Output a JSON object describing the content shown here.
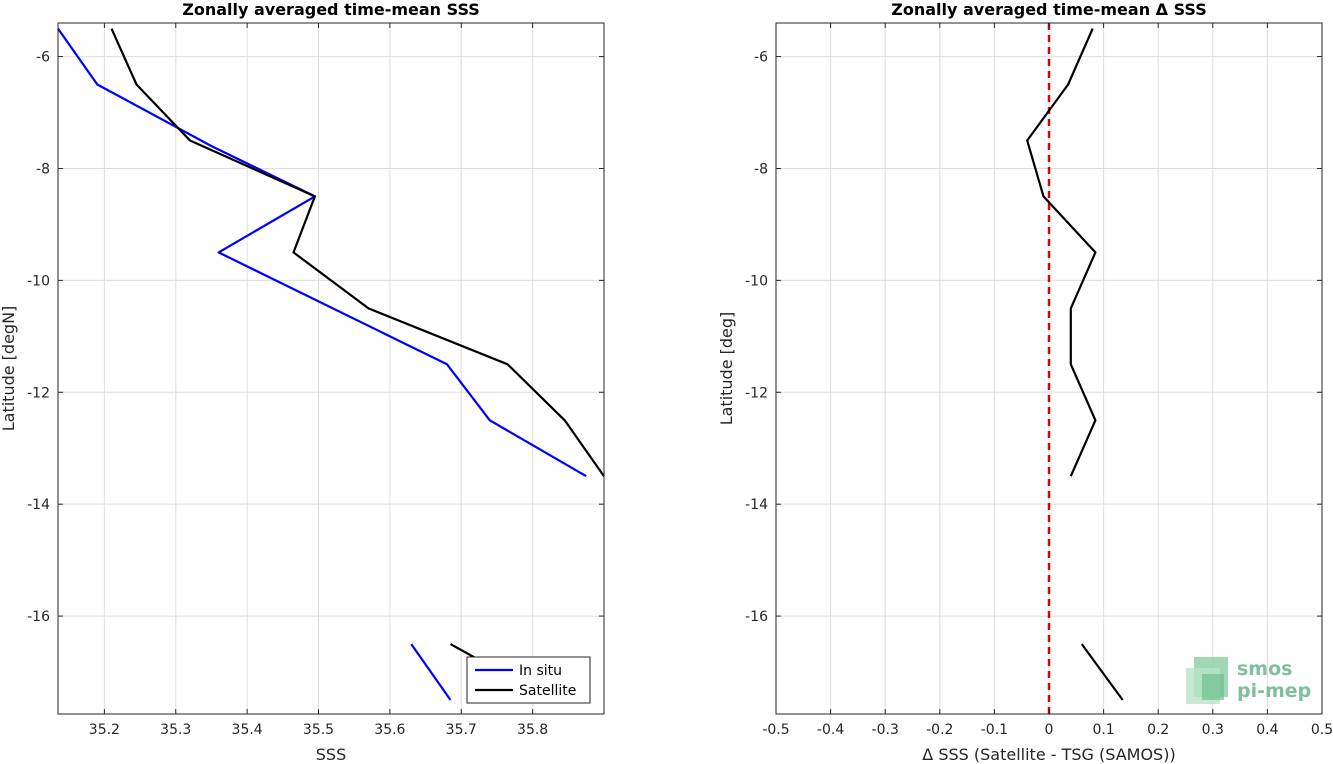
{
  "chart_data": [
    {
      "type": "line",
      "title": "Zonally averaged time-mean SSS",
      "xlabel": "SSS",
      "ylabel": "Latitude [degN]",
      "xlim": [
        35.135,
        35.9
      ],
      "ylim": [
        -17.75,
        -5.4
      ],
      "xticks": [
        35.2,
        35.3,
        35.4,
        35.5,
        35.6,
        35.7,
        35.8
      ],
      "yticks": [
        -6,
        -8,
        -10,
        -12,
        -14,
        -16
      ],
      "grid": true,
      "legend": "bottom-right",
      "series": [
        {
          "name": "In situ",
          "color": "#0000ff",
          "segments": [
            [
              [
                35.135,
                -5.5
              ],
              [
                35.19,
                -6.5
              ],
              [
                35.35,
                -7.6
              ],
              [
                35.495,
                -8.5
              ],
              [
                35.36,
                -9.5
              ],
              [
                35.68,
                -11.5
              ],
              [
                35.74,
                -12.5
              ],
              [
                35.875,
                -13.5
              ]
            ],
            [
              [
                35.63,
                -16.5
              ],
              [
                35.685,
                -17.5
              ]
            ]
          ]
        },
        {
          "name": "Satellite",
          "color": "#000000",
          "segments": [
            [
              [
                35.21,
                -5.5
              ],
              [
                35.245,
                -6.5
              ],
              [
                35.32,
                -7.5
              ],
              [
                35.495,
                -8.5
              ],
              [
                35.465,
                -9.5
              ],
              [
                35.57,
                -10.5
              ],
              [
                35.765,
                -11.5
              ],
              [
                35.845,
                -12.5
              ],
              [
                35.9,
                -13.5
              ]
            ],
            [
              [
                35.685,
                -16.5
              ],
              [
                35.72,
                -16.75
              ]
            ]
          ]
        }
      ]
    },
    {
      "type": "line",
      "title": "Zonally averaged time-mean Δ SSS",
      "xlabel": "Δ SSS (Satellite - TSG (SAMOS))",
      "ylabel": "Latitude [deg]",
      "xlim": [
        -0.5,
        0.5
      ],
      "ylim": [
        -17.75,
        -5.4
      ],
      "xticks": [
        -0.5,
        -0.4,
        -0.3,
        -0.2,
        -0.1,
        0,
        0.1,
        0.2,
        0.3,
        0.4,
        0.5
      ],
      "yticks": [
        -6,
        -8,
        -10,
        -12,
        -14,
        -16
      ],
      "grid": true,
      "reference_line": {
        "x": 0,
        "color": "#e00000",
        "style": "dashed"
      },
      "series": [
        {
          "color": "#000000",
          "segments": [
            [
              [
                0.08,
                -5.5
              ],
              [
                0.035,
                -6.5
              ],
              [
                -0.04,
                -7.5
              ],
              [
                -0.01,
                -8.5
              ],
              [
                0.085,
                -9.5
              ],
              [
                0.04,
                -10.5
              ],
              [
                0.04,
                -11.5
              ],
              [
                0.085,
                -12.5
              ],
              [
                0.04,
                -13.5
              ]
            ],
            [
              [
                0.06,
                -16.5
              ],
              [
                0.135,
                -17.5
              ]
            ]
          ]
        }
      ]
    }
  ],
  "logo": {
    "line1": "smos",
    "line2": "pi-mep",
    "color": "#7fbf9b"
  }
}
